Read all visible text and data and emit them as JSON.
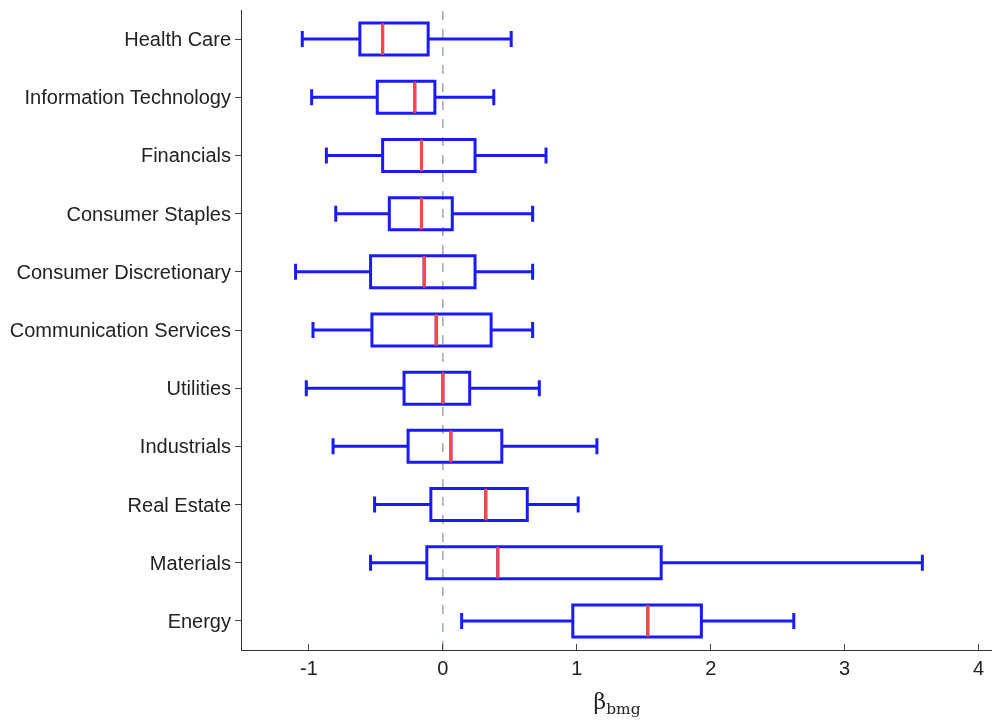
{
  "chart_data": {
    "type": "box",
    "orientation": "horizontal",
    "xlabel": "β$_{bmg}$",
    "categories": [
      "Health Care",
      "Information Technology",
      "Financials",
      "Consumer Staples",
      "Consumer Discretionary",
      "Communication Services",
      "Utilities",
      "Industrials",
      "Real Estate",
      "Materials",
      "Energy"
    ],
    "series": [
      {
        "color": "#1a1aff",
        "boxes": [
          {
            "low": -1.05,
            "q1": -0.62,
            "median": -0.45,
            "q3": -0.11,
            "high": 0.51
          },
          {
            "low": -0.98,
            "q1": -0.49,
            "median": -0.21,
            "q3": -0.06,
            "high": 0.38
          },
          {
            "low": -0.87,
            "q1": -0.45,
            "median": -0.16,
            "q3": 0.24,
            "high": 0.77
          },
          {
            "low": -0.8,
            "q1": -0.4,
            "median": -0.16,
            "q3": 0.07,
            "high": 0.67
          },
          {
            "low": -1.1,
            "q1": -0.54,
            "median": -0.14,
            "q3": 0.24,
            "high": 0.67
          },
          {
            "low": -0.97,
            "q1": -0.53,
            "median": -0.05,
            "q3": 0.36,
            "high": 0.67
          },
          {
            "low": -1.02,
            "q1": -0.29,
            "median": 0.0,
            "q3": 0.2,
            "high": 0.72
          },
          {
            "low": -0.82,
            "q1": -0.26,
            "median": 0.06,
            "q3": 0.44,
            "high": 1.15
          },
          {
            "low": -0.51,
            "q1": -0.09,
            "median": 0.32,
            "q3": 0.63,
            "high": 1.01
          },
          {
            "low": -0.54,
            "q1": -0.12,
            "median": 0.41,
            "q3": 1.63,
            "high": 3.58
          },
          {
            "low": 0.14,
            "q1": 0.97,
            "median": 1.53,
            "q3": 1.93,
            "high": 2.62
          }
        ]
      }
    ],
    "xlim": [
      -1.5,
      4.1
    ],
    "xticks": [
      -1,
      0,
      1,
      2,
      3,
      4
    ],
    "ref_lines": [
      {
        "axis": "x",
        "value": 0,
        "color": "#6b7b8c",
        "line_style": "dashed"
      }
    ],
    "grid": false
  }
}
